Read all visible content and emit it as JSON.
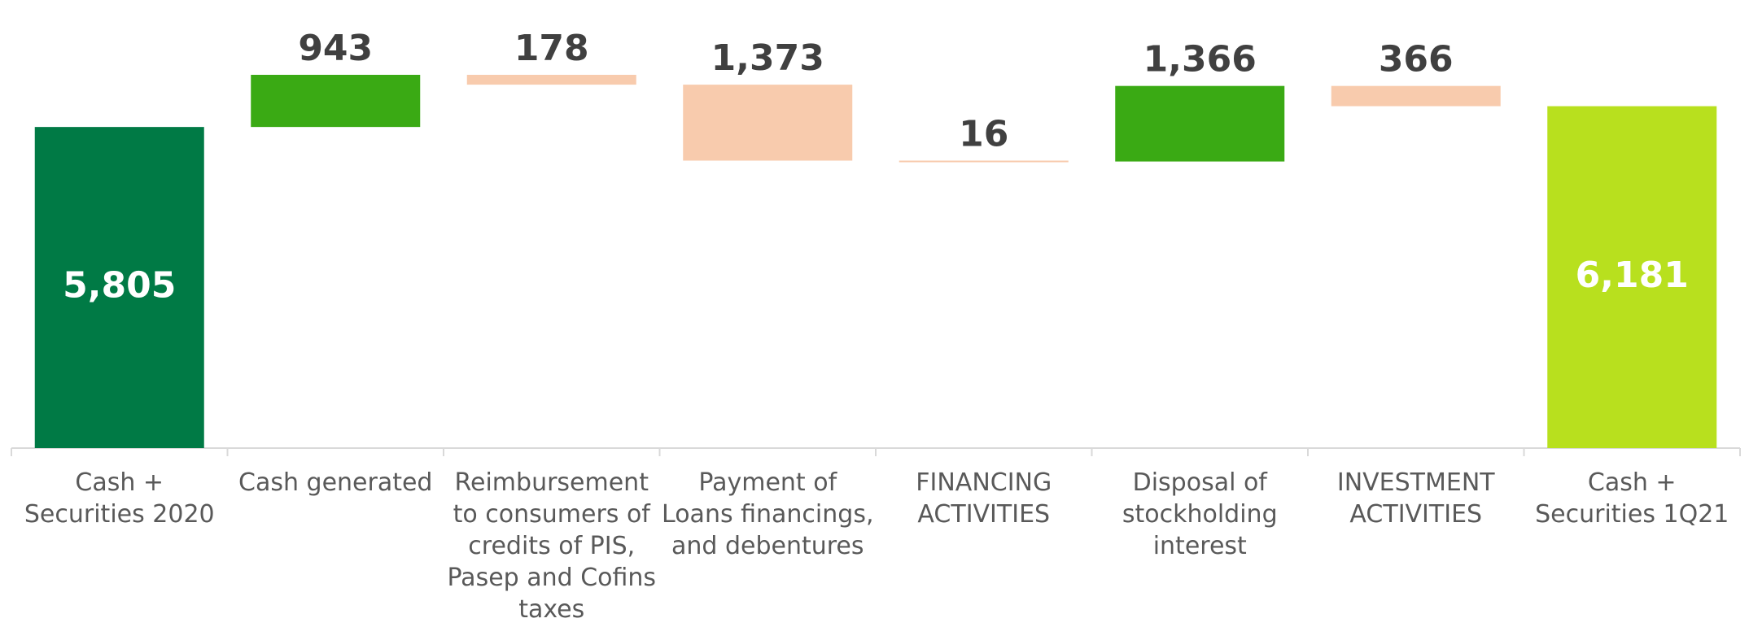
{
  "chart_data": {
    "type": "waterfall",
    "categories": [
      "Cash + Securities  2020",
      "Cash generated",
      "Reimbursement to consumers of credits of PIS, Pasep and Cofins taxes",
      "Payment of Loans financings, and debentures",
      "FINANCING ACTIVITIES",
      "Disposal of stockholding interest",
      "INVESTMENT ACTIVITIES",
      "Cash + Securities 1Q21"
    ],
    "values": [
      5805,
      943,
      -178,
      -1373,
      -16,
      1366,
      -366,
      6181
    ],
    "value_labels": [
      "5,805",
      "943",
      "178",
      "1,373",
      "16",
      "1,366",
      "366",
      "6,181"
    ],
    "measures": [
      "total",
      "relative",
      "relative",
      "relative",
      "relative",
      "relative",
      "relative",
      "total"
    ],
    "colors": {
      "total_start": "#007a45",
      "total_end": "#b8e01e",
      "increase": "#3aaa14",
      "decrease": "#f8cbad"
    }
  }
}
